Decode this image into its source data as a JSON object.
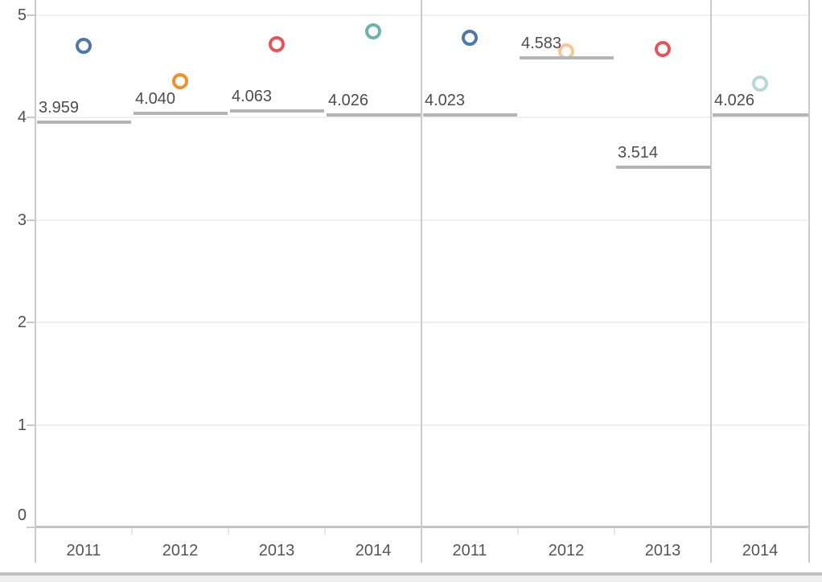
{
  "chart_data": {
    "type": "scatter",
    "title": "",
    "y_axis": {
      "min": 0,
      "max": 5,
      "tick_labels": [
        "0",
        "1",
        "2",
        "3",
        "4",
        "5"
      ],
      "gridlines": true
    },
    "panes": [
      {
        "categories": [
          "2011",
          "2012",
          "2013",
          "2014"
        ],
        "marks": [
          {
            "category": "2011",
            "value": 4.7,
            "color": "#4e79a7",
            "color_name": "blue",
            "faded": false
          },
          {
            "category": "2012",
            "value": 4.36,
            "color": "#f28e2b",
            "color_name": "orange",
            "faded": false
          },
          {
            "category": "2013",
            "value": 4.72,
            "color": "#e15759",
            "color_name": "red",
            "faded": false
          },
          {
            "category": "2014",
            "value": 4.84,
            "color": "#6db3ac",
            "color_name": "teal",
            "faded": false
          }
        ],
        "ref_lines": [
          {
            "category": "2011",
            "value": 3.959,
            "label": "3.959"
          },
          {
            "category": "2012",
            "value": 4.04,
            "label": "4.040"
          },
          {
            "category": "2013",
            "value": 4.063,
            "label": "4.063"
          },
          {
            "category": "2014",
            "value": 4.026,
            "label": "4.026"
          }
        ]
      },
      {
        "categories": [
          "2011",
          "2012",
          "2013"
        ],
        "marks": [
          {
            "category": "2011",
            "value": 4.78,
            "color": "#4e79a7",
            "color_name": "blue",
            "faded": false
          },
          {
            "category": "2012",
            "value": 4.65,
            "color": "#f28e2b",
            "color_name": "orange",
            "faded": true
          },
          {
            "category": "2013",
            "value": 4.67,
            "color": "#e15759",
            "color_name": "red",
            "faded": false
          }
        ],
        "ref_lines": [
          {
            "category": "2011",
            "value": 4.023,
            "label": "4.023"
          },
          {
            "category": "2012",
            "value": 4.583,
            "label": "4.583"
          },
          {
            "category": "2013",
            "value": 3.514,
            "label": "3.514"
          }
        ]
      },
      {
        "categories": [
          "2014"
        ],
        "marks": [
          {
            "category": "2014",
            "value": 4.33,
            "color": "#6db3ac",
            "color_name": "teal",
            "faded": true
          }
        ],
        "ref_lines": [
          {
            "category": "2014",
            "value": 4.026,
            "label": "4.026"
          }
        ]
      }
    ],
    "palette": {
      "2011": "#4e79a7",
      "2012": "#f28e2b",
      "2013": "#e15759",
      "2014": "#6db3ac"
    },
    "ref_line_color": "#b4b4b4",
    "axis_color": "#cbcbcb",
    "label_color": "#4d4d4d"
  }
}
